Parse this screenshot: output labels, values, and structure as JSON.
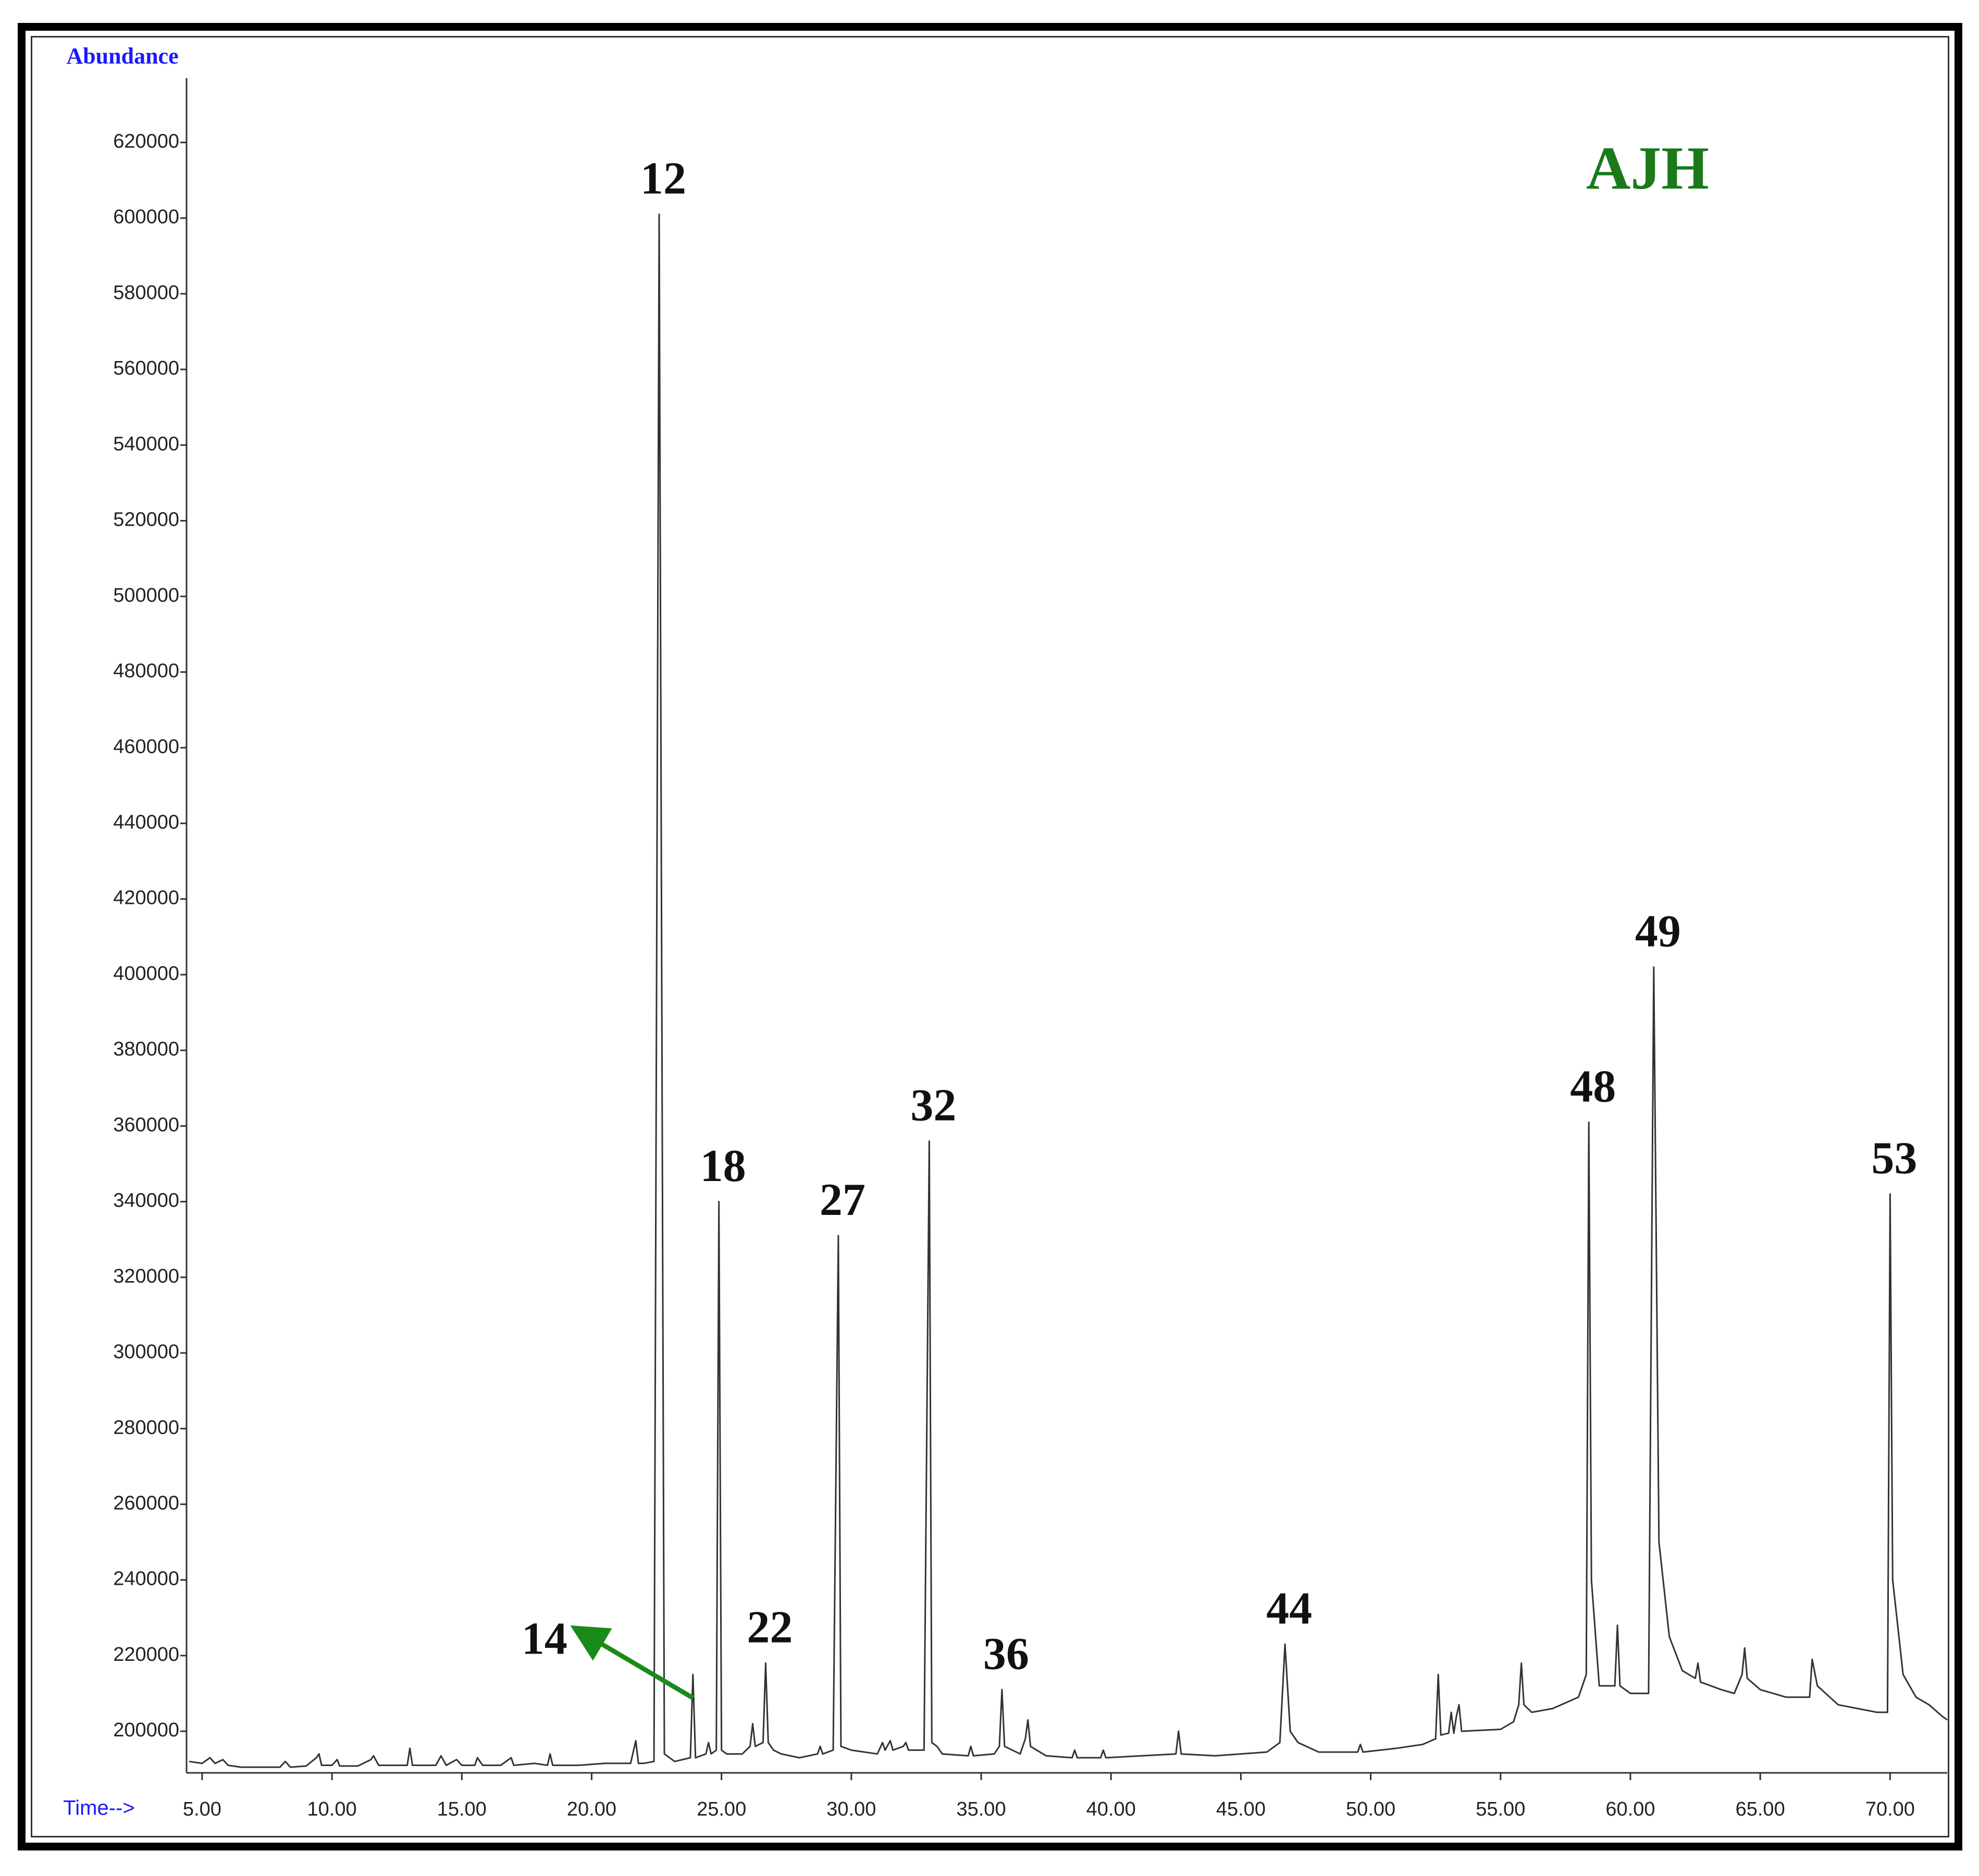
{
  "chart_data": {
    "type": "line",
    "title": "AJH",
    "title_color": "#1a7a1a",
    "y_label": "Abundance",
    "x_label": "Time-->",
    "axis_label_color": "#1a1aff",
    "color": "#333333",
    "xlim": [
      4.4,
      72.2
    ],
    "ylim": [
      189000,
      637000
    ],
    "xticks": [
      {
        "value": 5,
        "label": "5.00"
      },
      {
        "value": 10,
        "label": "10.00"
      },
      {
        "value": 15,
        "label": "15.00"
      },
      {
        "value": 20,
        "label": "20.00"
      },
      {
        "value": 25,
        "label": "25.00"
      },
      {
        "value": 30,
        "label": "30.00"
      },
      {
        "value": 35,
        "label": "35.00"
      },
      {
        "value": 40,
        "label": "40.00"
      },
      {
        "value": 45,
        "label": "45.00"
      },
      {
        "value": 50,
        "label": "50.00"
      },
      {
        "value": 55,
        "label": "55.00"
      },
      {
        "value": 60,
        "label": "60.00"
      },
      {
        "value": 65,
        "label": "65.00"
      },
      {
        "value": 70,
        "label": "70.00"
      }
    ],
    "yticks": [
      200000,
      220000,
      240000,
      260000,
      280000,
      300000,
      320000,
      340000,
      360000,
      380000,
      400000,
      420000,
      440000,
      460000,
      480000,
      500000,
      520000,
      540000,
      560000,
      580000,
      600000,
      620000
    ],
    "x": [
      4.5,
      5.0,
      5.3,
      5.5,
      5.8,
      6.0,
      6.5,
      7.5,
      8.0,
      8.2,
      8.4,
      9.0,
      9.4,
      9.5,
      9.6,
      10.0,
      10.2,
      10.3,
      10.5,
      11.0,
      11.5,
      11.6,
      11.8,
      12.5,
      12.9,
      13.0,
      13.1,
      13.5,
      14.0,
      14.2,
      14.4,
      14.8,
      15.0,
      15.5,
      15.6,
      15.8,
      16.5,
      16.9,
      17.0,
      17.8,
      18.3,
      18.4,
      18.5,
      19.5,
      20.5,
      21.5,
      21.7,
      21.8,
      22.0,
      22.4,
      22.6,
      22.8,
      23.2,
      23.8,
      23.9,
      24.0,
      24.4,
      24.5,
      24.6,
      24.8,
      24.9,
      25.0,
      25.2,
      25.8,
      26.1,
      26.2,
      26.3,
      26.6,
      26.7,
      26.8,
      27.0,
      27.3,
      28.0,
      28.7,
      28.8,
      28.9,
      29.3,
      29.5,
      29.6,
      30.0,
      31.0,
      31.2,
      31.3,
      31.5,
      31.6,
      32.0,
      32.1,
      32.2,
      32.8,
      33.0,
      33.1,
      33.3,
      33.5,
      34.5,
      34.6,
      34.7,
      35.5,
      35.7,
      35.8,
      35.9,
      36.5,
      36.7,
      36.8,
      36.9,
      37.5,
      38.5,
      38.6,
      38.7,
      39.6,
      39.7,
      39.8,
      42.5,
      42.6,
      42.7,
      44.0,
      46.0,
      46.5,
      46.7,
      46.9,
      47.2,
      48.0,
      49.5,
      49.6,
      49.7,
      51.0,
      52.0,
      52.5,
      52.6,
      52.7,
      53.0,
      53.1,
      53.2,
      53.3,
      53.4,
      53.5,
      55.0,
      55.5,
      55.7,
      55.8,
      55.9,
      56.2,
      57.0,
      58.0,
      58.3,
      58.4,
      58.5,
      58.8,
      59.4,
      59.5,
      59.6,
      60.0,
      60.7,
      60.9,
      61.1,
      61.5,
      62.0,
      62.5,
      62.6,
      62.7,
      63.5,
      64.0,
      64.3,
      64.4,
      64.5,
      65.0,
      66.0,
      66.9,
      67.0,
      67.2,
      68.0,
      69.5,
      69.9,
      70.0,
      70.1,
      70.5,
      71.0,
      71.5,
      72.0,
      72.2
    ],
    "values": [
      192000,
      191500,
      193000,
      191500,
      192500,
      191000,
      190500,
      190500,
      190500,
      192000,
      190500,
      190800,
      193000,
      194000,
      191000,
      191000,
      192500,
      190800,
      190800,
      190800,
      192500,
      193500,
      191000,
      191000,
      191000,
      195500,
      191000,
      191000,
      191000,
      193500,
      191000,
      192500,
      191000,
      191000,
      193000,
      191000,
      191000,
      193000,
      191000,
      191500,
      191000,
      194000,
      191000,
      191000,
      191500,
      191500,
      197500,
      191500,
      191500,
      192000,
      601000,
      194000,
      192000,
      193000,
      215000,
      193000,
      194000,
      197000,
      194000,
      195000,
      340000,
      195000,
      194000,
      194000,
      196000,
      202000,
      196000,
      197000,
      218000,
      197000,
      195000,
      194000,
      193000,
      194000,
      196000,
      194000,
      195000,
      331000,
      196000,
      195000,
      194000,
      197000,
      195000,
      197500,
      195000,
      196000,
      197000,
      195000,
      195000,
      356000,
      197000,
      196000,
      194000,
      193500,
      196000,
      193500,
      194000,
      196000,
      211000,
      196000,
      194000,
      198000,
      203000,
      196000,
      193500,
      193000,
      195000,
      193000,
      193000,
      195000,
      193000,
      194000,
      200000,
      194000,
      193500,
      194500,
      197000,
      223000,
      200000,
      197000,
      194500,
      194500,
      196500,
      194500,
      195500,
      196500,
      198000,
      215000,
      199000,
      199500,
      205000,
      199500,
      204000,
      207000,
      200000,
      200500,
      202500,
      207000,
      218000,
      207000,
      205000,
      206000,
      209000,
      215000,
      361000,
      240000,
      212000,
      212000,
      228000,
      212000,
      210000,
      210000,
      402000,
      250000,
      225000,
      216000,
      214000,
      218000,
      213000,
      211000,
      210000,
      215000,
      222000,
      214000,
      211000,
      209000,
      209000,
      219000,
      212000,
      207000,
      205000,
      205000,
      342000,
      240000,
      215000,
      209000,
      207000,
      204000,
      203000
    ],
    "peaks": [
      {
        "label": "12",
        "x": 22.6,
        "y": 601000
      },
      {
        "label": "14",
        "x": 23.9,
        "y": 215000,
        "arrow": true
      },
      {
        "label": "18",
        "x": 24.9,
        "y": 340000
      },
      {
        "label": "22",
        "x": 26.7,
        "y": 218000
      },
      {
        "label": "27",
        "x": 29.5,
        "y": 331000
      },
      {
        "label": "32",
        "x": 33.0,
        "y": 356000
      },
      {
        "label": "36",
        "x": 35.8,
        "y": 211000
      },
      {
        "label": "44",
        "x": 46.7,
        "y": 223000
      },
      {
        "label": "48",
        "x": 58.4,
        "y": 361000
      },
      {
        "label": "49",
        "x": 60.9,
        "y": 402000
      },
      {
        "label": "53",
        "x": 70.0,
        "y": 342000
      }
    ],
    "arrow_color": "#1a8a1a"
  }
}
